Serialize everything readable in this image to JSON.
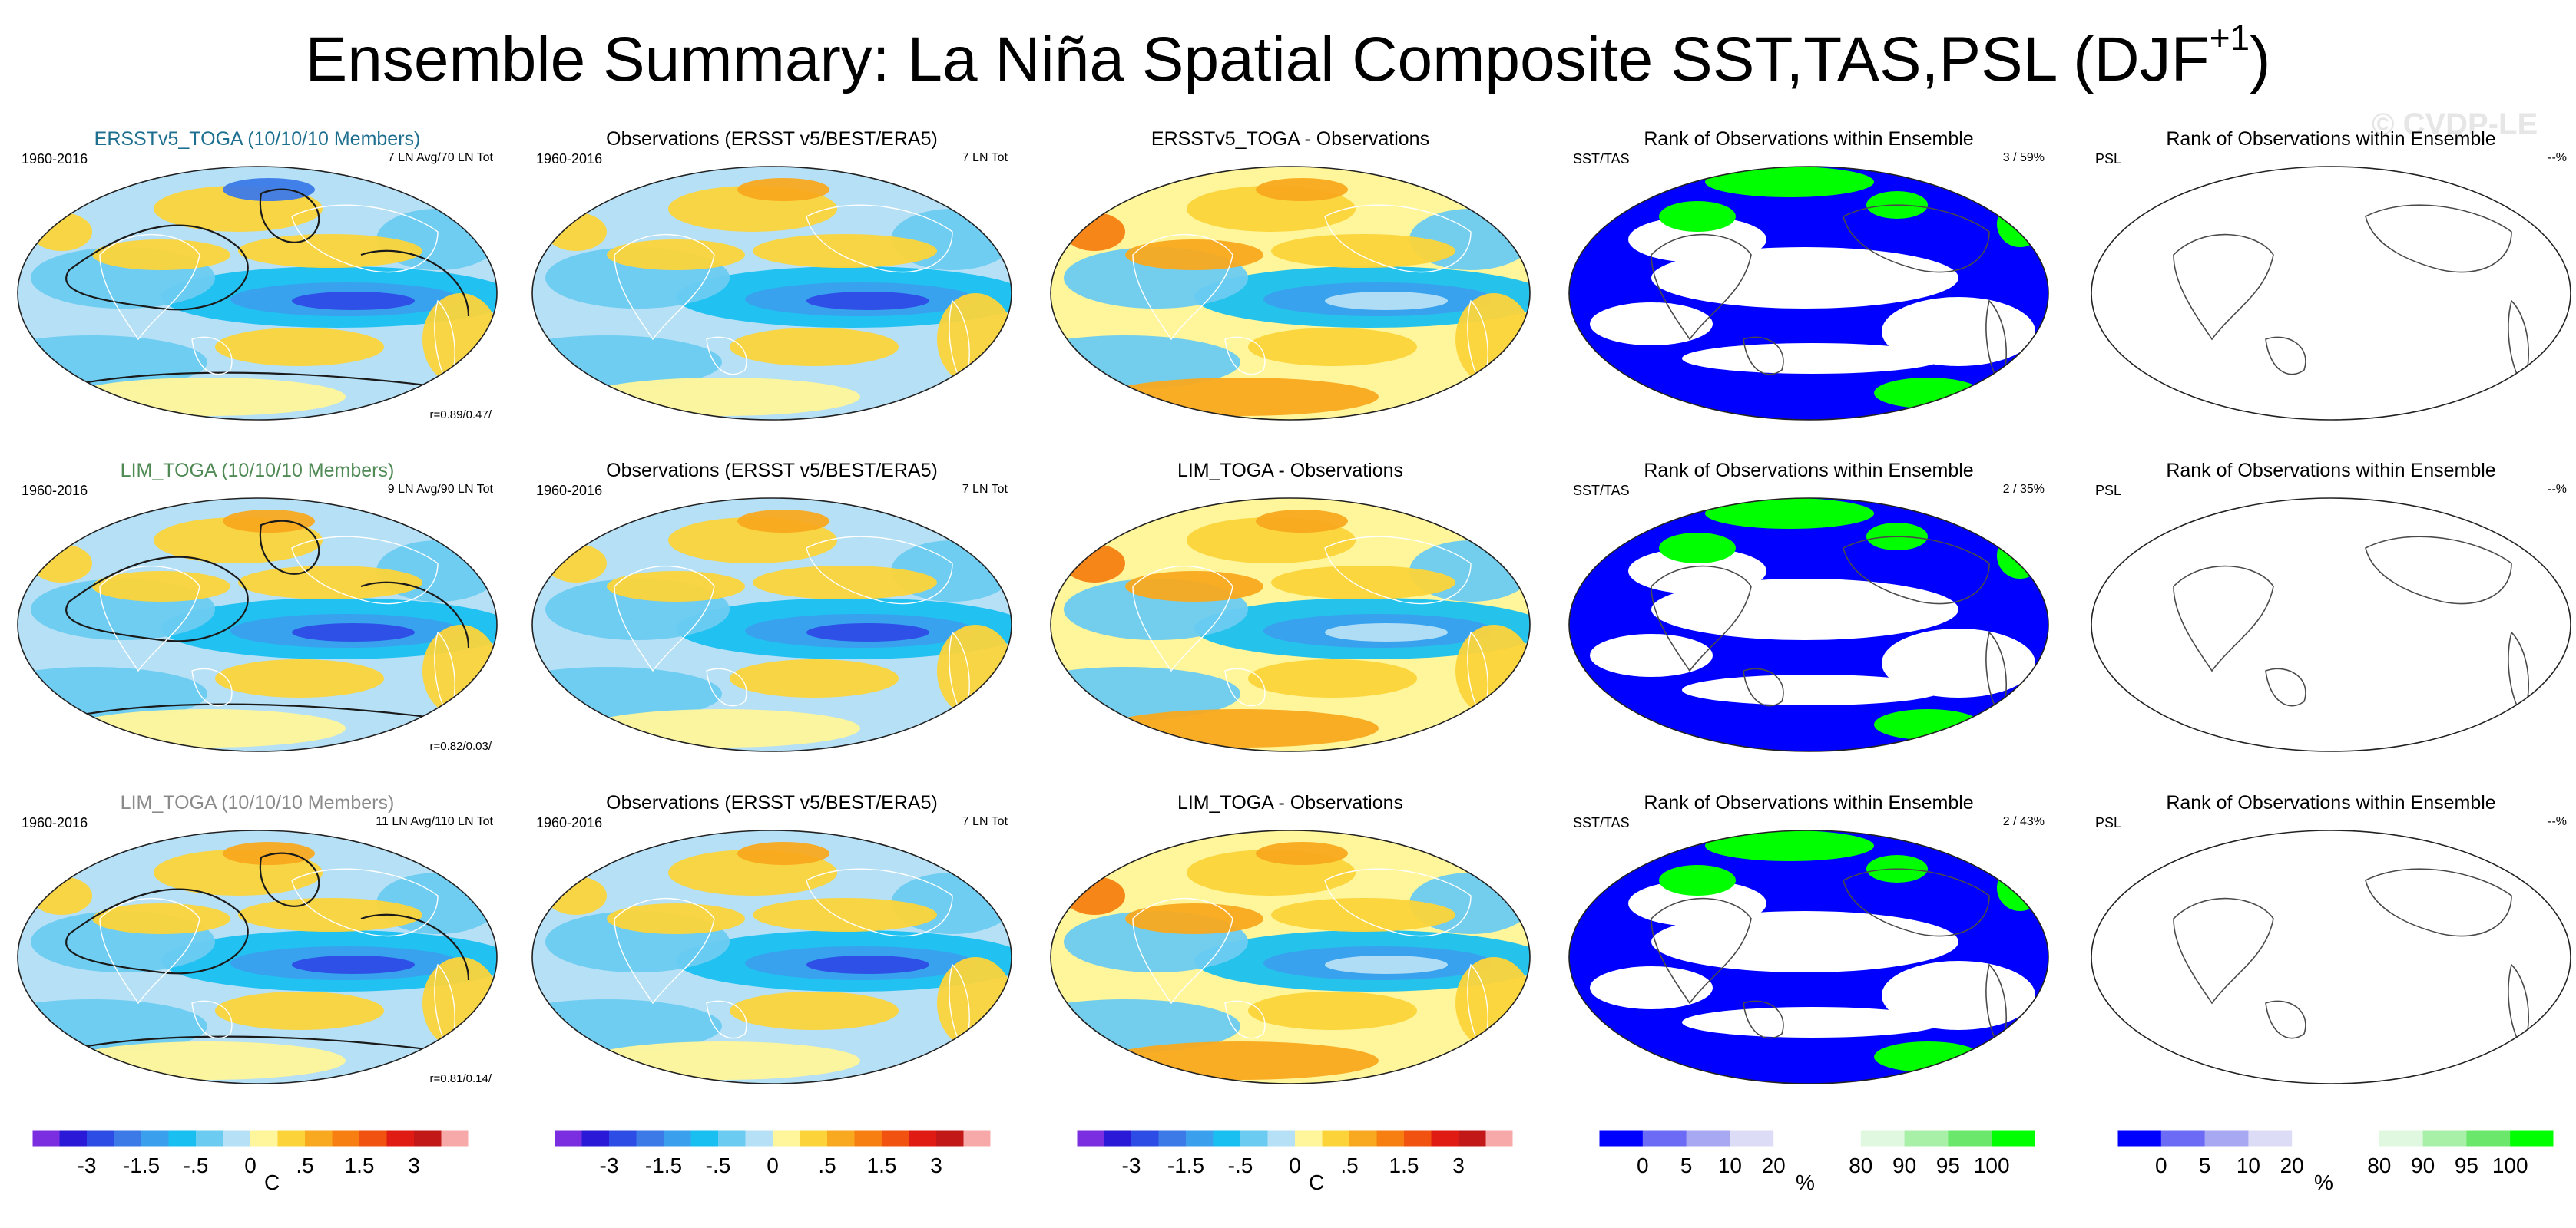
{
  "header": {
    "title": "Ensemble Summary: La Niña Spatial Composite SST,TAS,PSL (DJF",
    "title_sup": "+1",
    "title_close": ")",
    "watermark": "© CVDP-LE"
  },
  "rows": [
    {
      "ensemble_panel": {
        "title": "ERSSTv5_TOGA (10/10/10 Members)",
        "title_color": "#1e6f8f",
        "period": "1960-2016",
        "count": "7 LN Avg/70 LN Tot",
        "corr": "r=0.89/0.47/"
      },
      "obs_panel": {
        "title": "Observations (ERSST v5/BEST/ERA5)",
        "period": "1960-2016",
        "count": "7 LN Tot"
      },
      "diff_panel": {
        "title": "ERSSTv5_TOGA - Observations"
      },
      "rank_sst_panel": {
        "title": "Rank of Observations within Ensemble",
        "label": "SST/TAS",
        "stat": "3 /  59%"
      },
      "rank_psl_panel": {
        "title": "Rank of Observations within Ensemble",
        "label": "PSL",
        "stat": "--%"
      }
    },
    {
      "ensemble_panel": {
        "title": "LIM_TOGA (10/10/10 Members)",
        "title_color": "#4f8a55",
        "period": "1960-2016",
        "count": "9 LN Avg/90 LN Tot",
        "corr": "r=0.82/0.03/"
      },
      "obs_panel": {
        "title": "Observations (ERSST v5/BEST/ERA5)",
        "period": "1960-2016",
        "count": "7 LN Tot"
      },
      "diff_panel": {
        "title": "LIM_TOGA - Observations"
      },
      "rank_sst_panel": {
        "title": "Rank of Observations within Ensemble",
        "label": "SST/TAS",
        "stat": "2 /  35%"
      },
      "rank_psl_panel": {
        "title": "Rank of Observations within Ensemble",
        "label": "PSL",
        "stat": "--%"
      }
    },
    {
      "ensemble_panel": {
        "title": "LIM_TOGA (10/10/10 Members)",
        "title_color": "#8a8a8a",
        "period": "1960-2016",
        "count": "11 LN Avg/110 LN Tot",
        "corr": "r=0.81/0.14/"
      },
      "obs_panel": {
        "title": "Observations (ERSST v5/BEST/ERA5)",
        "period": "1960-2016",
        "count": "7 LN Tot"
      },
      "diff_panel": {
        "title": "LIM_TOGA - Observations"
      },
      "rank_sst_panel": {
        "title": "Rank of Observations within Ensemble",
        "label": "SST/TAS",
        "stat": "2 /  43%"
      },
      "rank_psl_panel": {
        "title": "Rank of Observations within Ensemble",
        "label": "PSL",
        "stat": "--%"
      }
    }
  ],
  "chart_data": [
    {
      "type": "colorbar",
      "units": "C",
      "tick_labels": [
        "-3",
        "-1.5",
        "-.5",
        "0",
        ".5",
        "1.5",
        "3"
      ],
      "tick_positions_level_index": [
        2,
        4,
        6,
        8,
        10,
        12,
        14
      ],
      "levels": [
        -4,
        -3,
        -2,
        -1.5,
        -1,
        -0.5,
        -0.25,
        0,
        0.25,
        0.5,
        1,
        1.5,
        2,
        3,
        4
      ],
      "colors": [
        "#7a2ee0",
        "#2a19d6",
        "#2d4ce6",
        "#3c7ae8",
        "#3aa0ee",
        "#19bff0",
        "#6ccbf1",
        "#b6e0f5",
        "#fff59a",
        "#fcd43a",
        "#f9a91f",
        "#f77f12",
        "#f2520f",
        "#e01b14",
        "#c21818",
        "#f7a8a8"
      ]
    },
    {
      "type": "colorbar",
      "units": "%",
      "tick_labels": [
        "0",
        "5",
        "10",
        "20",
        "80",
        "90",
        "95",
        "100"
      ],
      "levels": [
        0,
        5,
        10,
        20,
        80,
        90,
        95,
        100
      ],
      "colors": [
        "#0000ff",
        "#6b6bf5",
        "#a8a8f2",
        "#dcdcf7",
        "#ffffff",
        "#ffffff",
        "#dff8df",
        "#a8f0a8",
        "#6be86b",
        "#00ff00"
      ]
    }
  ]
}
